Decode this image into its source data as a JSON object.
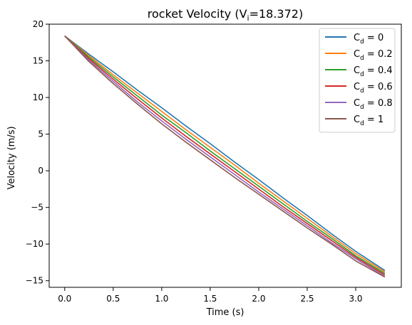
{
  "chart_data": {
    "type": "line",
    "title_prefix": "rocket Velocity (V",
    "title_sub": "i",
    "title_suffix": "=18.372)",
    "xlabel": "Time (s)",
    "ylabel": "Velocity (m/s)",
    "xlim": [
      -0.16,
      3.47
    ],
    "ylim": [
      -15.9,
      20
    ],
    "xticks": [
      0.0,
      0.5,
      1.0,
      1.5,
      2.0,
      2.5,
      3.0
    ],
    "xtick_labels": [
      "0.0",
      "0.5",
      "1.0",
      "1.5",
      "2.0",
      "2.5",
      "3.0"
    ],
    "yticks": [
      -15,
      -10,
      -5,
      0,
      5,
      10,
      15,
      20
    ],
    "ytick_labels": [
      "−15",
      "−10",
      "−5",
      "0",
      "5",
      "10",
      "15",
      "20"
    ],
    "grid": false,
    "legend_position": "top-right",
    "x": [
      0.0,
      0.25,
      0.5,
      0.75,
      1.0,
      1.25,
      1.5,
      1.75,
      2.0,
      2.25,
      2.5,
      2.75,
      3.0,
      3.3
    ],
    "series": [
      {
        "name_main": "C",
        "name_sub": "d",
        "name_rest": " = 0",
        "color": "#1f77b4",
        "values": [
          18.4,
          15.9,
          13.5,
          11.0,
          8.6,
          6.1,
          3.7,
          1.2,
          -1.2,
          -3.7,
          -6.1,
          -8.6,
          -11.0,
          -13.6
        ]
      },
      {
        "name_main": "C",
        "name_sub": "d",
        "name_rest": " = 0.2",
        "color": "#ff7f0e",
        "values": [
          18.4,
          15.7,
          13.1,
          10.6,
          8.1,
          5.6,
          3.2,
          0.8,
          -1.7,
          -4.1,
          -6.5,
          -8.9,
          -11.3,
          -13.8
        ]
      },
      {
        "name_main": "C",
        "name_sub": "d",
        "name_rest": " = 0.4",
        "color": "#2ca02c",
        "values": [
          18.4,
          15.5,
          12.8,
          10.2,
          7.6,
          5.2,
          2.7,
          0.3,
          -2.1,
          -4.5,
          -6.9,
          -9.2,
          -11.6,
          -14.0
        ]
      },
      {
        "name_main": "C",
        "name_sub": "d",
        "name_rest": " = 0.6",
        "color": "#d62728",
        "values": [
          18.4,
          15.3,
          12.5,
          9.8,
          7.2,
          4.7,
          2.3,
          -0.1,
          -2.5,
          -4.9,
          -7.2,
          -9.5,
          -11.8,
          -14.2
        ]
      },
      {
        "name_main": "C",
        "name_sub": "d",
        "name_rest": " = 0.8",
        "color": "#9467bd",
        "values": [
          18.4,
          15.1,
          12.2,
          9.4,
          6.8,
          4.3,
          1.9,
          -0.5,
          -2.9,
          -5.2,
          -7.5,
          -9.8,
          -12.0,
          -14.4
        ]
      },
      {
        "name_main": "C",
        "name_sub": "d",
        "name_rest": " = 1",
        "color": "#8c564b",
        "values": [
          18.4,
          14.9,
          11.9,
          9.1,
          6.4,
          3.9,
          1.5,
          -0.9,
          -3.2,
          -5.5,
          -7.8,
          -10.0,
          -12.3,
          -14.5
        ]
      }
    ]
  }
}
